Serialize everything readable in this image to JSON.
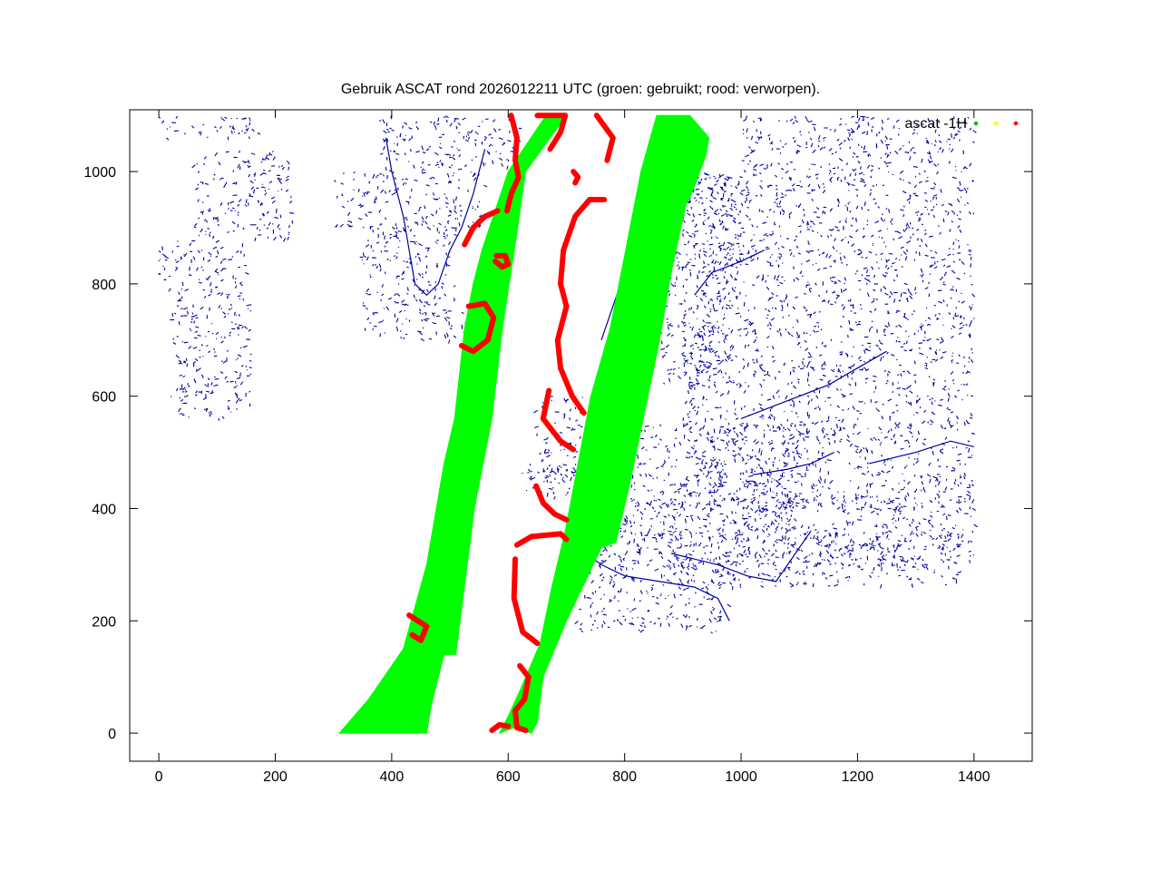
{
  "chart_data": {
    "type": "scatter",
    "title": "Gebruik ASCAT rond 2026012211 UTC (groen: gebruikt; rood: verworpen).",
    "xlabel": "",
    "ylabel": "",
    "xlim": [
      -50,
      1500
    ],
    "ylim": [
      -50,
      1110
    ],
    "xticks": [
      0,
      200,
      400,
      600,
      800,
      1000,
      1200,
      1400
    ],
    "yticks": [
      0,
      200,
      400,
      600,
      800,
      1000
    ],
    "grid": false,
    "legend_position": "top-right",
    "legend_label": "ascat -1H",
    "legend_colors": [
      "#00c000",
      "#ffff00",
      "#ff0000"
    ],
    "coastline_color": "#0000a0",
    "series": [
      {
        "status": "used",
        "color": "#00ff00",
        "swaths": [
          [
            [
              310,
              0
            ],
            [
              460,
              0
            ],
            [
              468,
              50
            ],
            [
              490,
              140
            ],
            [
              510,
              140
            ],
            [
              542,
              400
            ],
            [
              572,
              560
            ],
            [
              590,
              720
            ],
            [
              612,
              870
            ],
            [
              630,
              1000
            ],
            [
              700,
              1100
            ],
            [
              665,
              1100
            ],
            [
              600,
              1000
            ],
            [
              555,
              860
            ],
            [
              540,
              800
            ],
            [
              525,
              720
            ],
            [
              508,
              560
            ],
            [
              490,
              480
            ],
            [
              460,
              300
            ],
            [
              420,
              150
            ],
            [
              360,
              60
            ]
          ],
          [
            [
              585,
              0
            ],
            [
              610,
              10
            ],
            [
              640,
              0
            ],
            [
              650,
              20
            ],
            [
              660,
              100
            ],
            [
              700,
              200
            ],
            [
              760,
              330
            ],
            [
              785,
              340
            ],
            [
              808,
              440
            ],
            [
              830,
              550
            ],
            [
              860,
              700
            ],
            [
              880,
              820
            ],
            [
              905,
              940
            ],
            [
              915,
              960
            ],
            [
              940,
              1030
            ],
            [
              945,
              1060
            ],
            [
              912,
              1100
            ],
            [
              855,
              1100
            ],
            [
              828,
              1000
            ],
            [
              798,
              840
            ],
            [
              775,
              720
            ],
            [
              742,
              600
            ],
            [
              720,
              480
            ],
            [
              698,
              360
            ],
            [
              675,
              260
            ],
            [
              655,
              160
            ],
            [
              622,
              80
            ],
            [
              600,
              30
            ]
          ]
        ]
      },
      {
        "status": "rejected",
        "color": "#ff0000",
        "traces": [
          [
            [
              605,
              1100
            ],
            [
              615,
              1060
            ],
            [
              612,
              1020
            ],
            [
              618,
              990
            ],
            [
              605,
              960
            ],
            [
              598,
              930
            ]
          ],
          [
            [
              650,
              1100
            ],
            [
              698,
              1100
            ],
            [
              690,
              1070
            ],
            [
              672,
              1040
            ]
          ],
          [
            [
              582,
              930
            ],
            [
              560,
              920
            ],
            [
              540,
              900
            ],
            [
              525,
              870
            ]
          ],
          [
            [
              532,
              760
            ],
            [
              560,
              765
            ],
            [
              575,
              740
            ],
            [
              565,
              700
            ],
            [
              540,
              680
            ],
            [
              520,
              690
            ]
          ],
          [
            [
              578,
              840
            ],
            [
              590,
              830
            ],
            [
              600,
              835
            ],
            [
              595,
              850
            ],
            [
              580,
              850
            ]
          ],
          [
            [
              752,
              1100
            ],
            [
              780,
              1060
            ],
            [
              770,
              1020
            ]
          ],
          [
            [
              715,
              980
            ],
            [
              720,
              990
            ],
            [
              712,
              1000
            ]
          ],
          [
            [
              765,
              950
            ],
            [
              740,
              950
            ],
            [
              715,
              920
            ],
            [
              695,
              860
            ],
            [
              690,
              800
            ],
            [
              700,
              760
            ],
            [
              685,
              700
            ],
            [
              690,
              650
            ],
            [
              710,
              600
            ],
            [
              730,
              570
            ]
          ],
          [
            [
              670,
              610
            ],
            [
              660,
              560
            ],
            [
              690,
              520
            ],
            [
              712,
              505
            ]
          ],
          [
            [
              648,
              440
            ],
            [
              660,
              410
            ],
            [
              680,
              390
            ],
            [
              700,
              380
            ]
          ],
          [
            [
              615,
              335
            ],
            [
              640,
              350
            ],
            [
              690,
              355
            ],
            [
              700,
              345
            ]
          ],
          [
            [
              612,
              310
            ],
            [
              610,
              240
            ],
            [
              625,
              180
            ],
            [
              650,
              160
            ]
          ],
          [
            [
              430,
              210
            ],
            [
              445,
              200
            ],
            [
              460,
              190
            ],
            [
              450,
              165
            ],
            [
              435,
              175
            ]
          ],
          [
            [
              620,
              120
            ],
            [
              635,
              100
            ],
            [
              628,
              60
            ],
            [
              612,
              40
            ],
            [
              615,
              10
            ],
            [
              630,
              5
            ]
          ],
          [
            [
              572,
              5
            ],
            [
              585,
              15
            ],
            [
              600,
              12
            ]
          ]
        ]
      }
    ]
  }
}
